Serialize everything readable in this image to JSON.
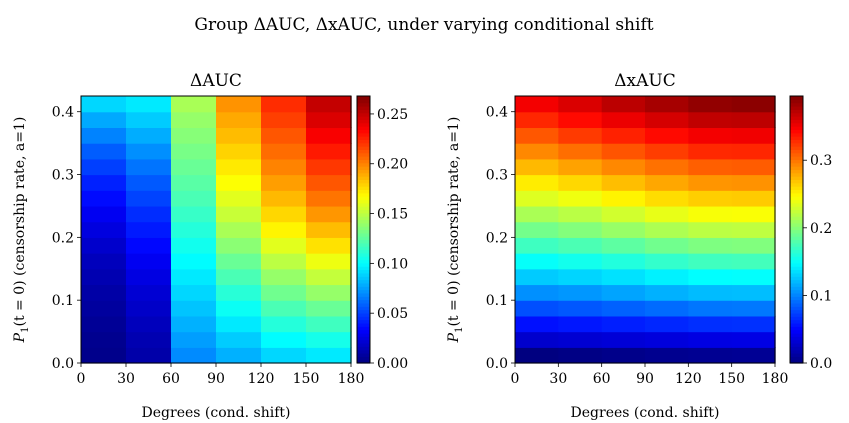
{
  "figure": {
    "suptitle": "Group ΔAUC, ΔxAUC, under varying conditional shift"
  },
  "chart_data": [
    {
      "type": "heatmap",
      "title": "ΔAUC",
      "xlabel": "Degrees (cond. shift)",
      "ylabel_prefix": "P",
      "ylabel_sub": "1",
      "ylabel_rest": "(t = 0) (censorship rate, a=1)",
      "x_ticks": [
        "0",
        "30",
        "60",
        "90",
        "120",
        "150",
        "180"
      ],
      "y_ticks": [
        "0.0",
        "0.1",
        "0.2",
        "0.3",
        "0.4"
      ],
      "x_range": [
        0,
        180
      ],
      "y_range": [
        0,
        0.425
      ],
      "x_bins": [
        0,
        30,
        60,
        90,
        120,
        150,
        180
      ],
      "y_bins": [
        0.0,
        0.025,
        0.05,
        0.075,
        0.1,
        0.125,
        0.15,
        0.175,
        0.2,
        0.225,
        0.25,
        0.275,
        0.3,
        0.325,
        0.35,
        0.375,
        0.4,
        0.425
      ],
      "colormap": "jet",
      "colorbar_range": [
        0,
        0.268
      ],
      "colorbar_ticks": [
        "0.00",
        "0.05",
        "0.10",
        "0.15",
        "0.20",
        "0.25"
      ],
      "colorbar_tick_values": [
        0,
        0.05,
        0.1,
        0.15,
        0.2,
        0.25
      ],
      "values": [
        [
          0.003,
          0.004,
          0.006,
          0.008,
          0.01,
          0.013,
          0.016,
          0.02,
          0.025,
          0.03,
          0.036,
          0.042,
          0.05,
          0.058,
          0.068,
          0.078,
          0.09
        ],
        [
          0.011,
          0.013,
          0.016,
          0.019,
          0.022,
          0.026,
          0.03,
          0.035,
          0.04,
          0.045,
          0.051,
          0.057,
          0.064,
          0.071,
          0.079,
          0.087,
          0.095
        ],
        [
          0.07,
          0.075,
          0.08,
          0.085,
          0.09,
          0.095,
          0.1,
          0.105,
          0.11,
          0.115,
          0.12,
          0.124,
          0.128,
          0.132,
          0.136,
          0.14,
          0.145
        ],
        [
          0.08,
          0.087,
          0.095,
          0.103,
          0.111,
          0.12,
          0.128,
          0.137,
          0.145,
          0.153,
          0.16,
          0.167,
          0.173,
          0.179,
          0.185,
          0.19,
          0.196
        ],
        [
          0.09,
          0.1,
          0.11,
          0.12,
          0.13,
          0.14,
          0.15,
          0.16,
          0.17,
          0.178,
          0.186,
          0.193,
          0.2,
          0.206,
          0.212,
          0.218,
          0.223
        ],
        [
          0.095,
          0.106,
          0.117,
          0.128,
          0.14,
          0.152,
          0.163,
          0.175,
          0.185,
          0.195,
          0.204,
          0.212,
          0.22,
          0.228,
          0.236,
          0.244,
          0.25
        ],
        [
          0.098,
          0.11,
          0.122,
          0.134,
          0.147,
          0.16,
          0.172,
          0.184,
          0.195,
          0.205,
          0.214,
          0.223,
          0.232,
          0.24,
          0.248,
          0.256,
          0.265
        ]
      ]
    },
    {
      "type": "heatmap",
      "title": "ΔxAUC",
      "xlabel": "Degrees (cond. shift)",
      "ylabel_prefix": "P",
      "ylabel_sub": "1",
      "ylabel_rest": "(t = 0) (censorship rate, a=1)",
      "x_ticks": [
        "0",
        "30",
        "60",
        "90",
        "120",
        "150",
        "180"
      ],
      "y_ticks": [
        "0.0",
        "0.1",
        "0.2",
        "0.3",
        "0.4"
      ],
      "x_range": [
        0,
        180
      ],
      "y_range": [
        0,
        0.425
      ],
      "x_bins": [
        0,
        30,
        60,
        90,
        120,
        150,
        180
      ],
      "y_bins": [
        0.0,
        0.025,
        0.05,
        0.075,
        0.1,
        0.125,
        0.15,
        0.175,
        0.2,
        0.225,
        0.25,
        0.275,
        0.3,
        0.325,
        0.35,
        0.375,
        0.4,
        0.425
      ],
      "colormap": "jet",
      "colorbar_range": [
        0,
        0.395
      ],
      "colorbar_ticks": [
        "0.0",
        "0.1",
        "0.2",
        "0.3"
      ],
      "colorbar_tick_values": [
        0,
        0.1,
        0.2,
        0.3
      ],
      "values": [
        [
          0.0,
          0.03,
          0.055,
          0.08,
          0.105,
          0.128,
          0.15,
          0.172,
          0.193,
          0.214,
          0.234,
          0.254,
          0.274,
          0.293,
          0.312,
          0.331,
          0.35
        ],
        [
          0.002,
          0.032,
          0.058,
          0.083,
          0.108,
          0.132,
          0.155,
          0.177,
          0.199,
          0.22,
          0.241,
          0.262,
          0.283,
          0.303,
          0.323,
          0.342,
          0.36
        ],
        [
          0.004,
          0.034,
          0.061,
          0.087,
          0.113,
          0.137,
          0.161,
          0.184,
          0.207,
          0.229,
          0.251,
          0.272,
          0.293,
          0.313,
          0.333,
          0.353,
          0.372
        ],
        [
          0.006,
          0.036,
          0.064,
          0.091,
          0.118,
          0.143,
          0.168,
          0.192,
          0.215,
          0.238,
          0.26,
          0.281,
          0.302,
          0.322,
          0.342,
          0.362,
          0.38
        ],
        [
          0.007,
          0.038,
          0.067,
          0.095,
          0.122,
          0.148,
          0.173,
          0.197,
          0.221,
          0.244,
          0.266,
          0.288,
          0.309,
          0.33,
          0.35,
          0.37,
          0.388
        ],
        [
          0.008,
          0.039,
          0.068,
          0.096,
          0.123,
          0.149,
          0.174,
          0.198,
          0.222,
          0.245,
          0.267,
          0.289,
          0.31,
          0.331,
          0.351,
          0.371,
          0.39
        ],
        [
          0.008,
          0.039,
          0.068,
          0.096,
          0.123,
          0.149,
          0.174,
          0.198,
          0.222,
          0.245,
          0.267,
          0.289,
          0.31,
          0.331,
          0.351,
          0.371,
          0.393
        ]
      ]
    }
  ]
}
